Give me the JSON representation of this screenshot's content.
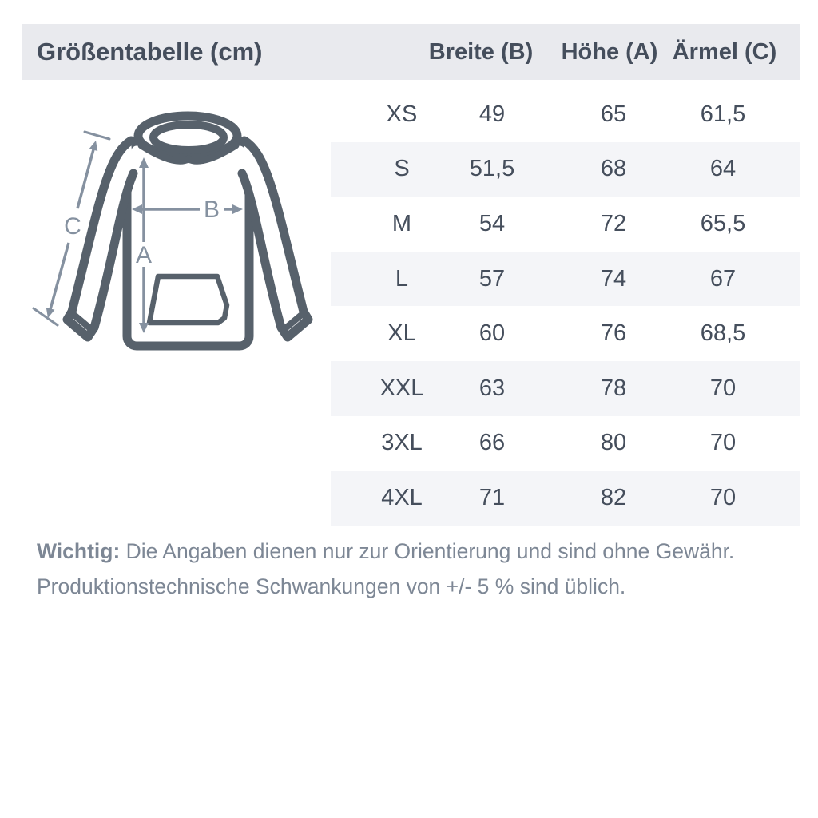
{
  "header": {
    "title": "Größentabelle (cm)",
    "columns": [
      "Breite (B)",
      "Höhe (A)",
      "Ärmel (C)"
    ]
  },
  "diagram": {
    "labels": {
      "a": "A",
      "b": "B",
      "c": "C"
    }
  },
  "table": {
    "rows": [
      {
        "size": "XS",
        "breite": "49",
        "hoehe": "65",
        "aermel": "61,5"
      },
      {
        "size": "S",
        "breite": "51,5",
        "hoehe": "68",
        "aermel": "64"
      },
      {
        "size": "M",
        "breite": "54",
        "hoehe": "72",
        "aermel": "65,5"
      },
      {
        "size": "L",
        "breite": "57",
        "hoehe": "74",
        "aermel": "67"
      },
      {
        "size": "XL",
        "breite": "60",
        "hoehe": "76",
        "aermel": "68,5"
      },
      {
        "size": "XXL",
        "breite": "63",
        "hoehe": "78",
        "aermel": "70"
      },
      {
        "size": "3XL",
        "breite": "66",
        "hoehe": "80",
        "aermel": "70"
      },
      {
        "size": "4XL",
        "breite": "71",
        "hoehe": "82",
        "aermel": "70"
      }
    ]
  },
  "footer": {
    "bold_prefix": "Wichtig:",
    "line1_rest": " Die Angaben dienen nur zur Orientierung und sind ohne Gewähr.",
    "line2": "Produktionstechnische Schwankungen von +/- 5 % sind üblich."
  },
  "colors": {
    "header_band": "#e9eaee",
    "row_band": "#f4f5f8",
    "text_dark": "#454e5c",
    "text_muted": "#7d8795",
    "hoodie_outline": "#57616b",
    "arrow": "#8591a0"
  },
  "chart_data": {
    "type": "table",
    "title": "Größentabelle (cm)",
    "columns": [
      "",
      "Breite (B)",
      "Höhe (A)",
      "Ärmel (C)"
    ],
    "rows": [
      [
        "XS",
        "49",
        "65",
        "61,5"
      ],
      [
        "S",
        "51,5",
        "68",
        "64"
      ],
      [
        "M",
        "54",
        "72",
        "65,5"
      ],
      [
        "L",
        "57",
        "74",
        "67"
      ],
      [
        "XL",
        "60",
        "76",
        "68,5"
      ],
      [
        "XXL",
        "63",
        "78",
        "70"
      ],
      [
        "3XL",
        "66",
        "80",
        "70"
      ],
      [
        "4XL",
        "71",
        "82",
        "70"
      ]
    ],
    "legend_position": "none",
    "notes": "Measurement letters on hoodie diagram: A = Höhe (height), B = Breite (width), C = Ärmel (sleeve)"
  }
}
